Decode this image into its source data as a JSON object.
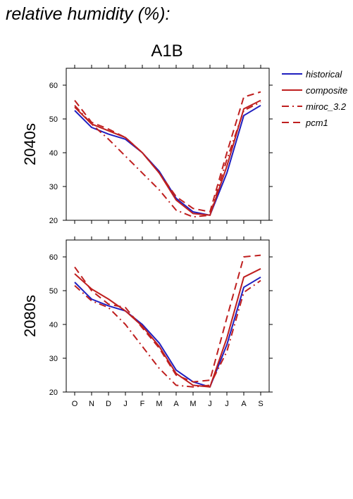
{
  "page_title": "relative humidity (%):",
  "chart_data": {
    "type": "line",
    "title": "A1B",
    "categories": [
      "O",
      "N",
      "D",
      "J",
      "F",
      "M",
      "A",
      "M",
      "J",
      "J",
      "A",
      "S"
    ],
    "ylim": [
      20,
      65
    ],
    "yticks": [
      20,
      30,
      40,
      50,
      60
    ],
    "grid": false,
    "legend_position": "right",
    "legend": [
      {
        "name": "historical",
        "color": "#1f1fbf",
        "dash": "solid"
      },
      {
        "name": "composite",
        "color": "#bf1f1f",
        "dash": "solid"
      },
      {
        "name": "miroc_3.2",
        "color": "#bf1f1f",
        "dash": "dashdot"
      },
      {
        "name": "pcm1",
        "color": "#bf1f1f",
        "dash": "dashed"
      }
    ],
    "panels": [
      {
        "label": "2040s",
        "series": [
          {
            "name": "historical",
            "values": [
              52.5,
              47.5,
              45.5,
              44.0,
              40.0,
              34.5,
              26.5,
              22.5,
              21.5,
              34.0,
              51.0,
              54.0
            ]
          },
          {
            "name": "composite",
            "values": [
              53.5,
              48.5,
              46.5,
              44.5,
              40.0,
              34.0,
              26.0,
              22.0,
              21.5,
              36.0,
              53.0,
              55.5
            ]
          },
          {
            "name": "miroc_3.2",
            "values": [
              54.0,
              48.5,
              44.0,
              39.0,
              34.0,
              29.0,
              23.0,
              21.0,
              21.5,
              38.0,
              52.5,
              55.0
            ]
          },
          {
            "name": "pcm1",
            "values": [
              55.5,
              49.0,
              47.0,
              44.5,
              40.0,
              34.0,
              27.0,
              23.5,
              22.5,
              40.0,
              56.5,
              58.0
            ]
          }
        ]
      },
      {
        "label": "2080s",
        "series": [
          {
            "name": "historical",
            "values": [
              52.5,
              47.5,
              45.5,
              44.0,
              40.0,
              34.5,
              26.5,
              23.0,
              21.5,
              34.0,
              51.0,
              54.0
            ]
          },
          {
            "name": "composite",
            "values": [
              55.0,
              50.5,
              47.5,
              44.0,
              39.5,
              33.5,
              25.5,
              22.0,
              21.5,
              36.0,
              54.0,
              56.5
            ]
          },
          {
            "name": "miroc_3.2",
            "values": [
              51.5,
              47.0,
              45.0,
              40.0,
              33.5,
              27.0,
              22.0,
              21.5,
              22.0,
              32.0,
              49.5,
              53.0
            ]
          },
          {
            "name": "pcm1",
            "values": [
              57.0,
              50.0,
              46.0,
              45.0,
              39.0,
              33.0,
              25.0,
              23.0,
              23.5,
              42.0,
              60.0,
              60.5
            ]
          }
        ]
      }
    ]
  }
}
